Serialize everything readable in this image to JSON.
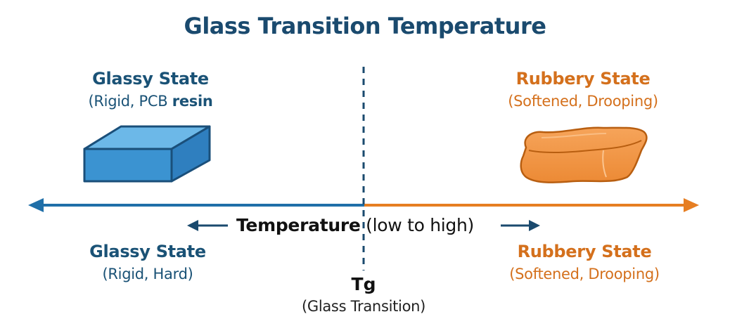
{
  "title": "Glass Transition Temperature",
  "top_left": {
    "heading": "Glassy State",
    "subtitle_pre": "(Rigid, PCB ",
    "subtitle_bold": "resin"
  },
  "top_right": {
    "heading": "Rubbery State",
    "subtitle": "(Softened, Drooping)"
  },
  "axis": {
    "label_bold": "Temperature",
    "label_rest": " (low to high)"
  },
  "bottom_left": {
    "heading": "Glassy State",
    "subtitle": "(Rigid, Hard)"
  },
  "bottom_right": {
    "heading": "Rubbery State",
    "subtitle": "(Softened, Drooping)"
  },
  "tg": {
    "label": "Tg",
    "subtitle": "(Glass Transition)"
  },
  "colors": {
    "glassy": "#1f6fa8",
    "rubbery": "#e67e22",
    "title": "#1a4a6e"
  }
}
